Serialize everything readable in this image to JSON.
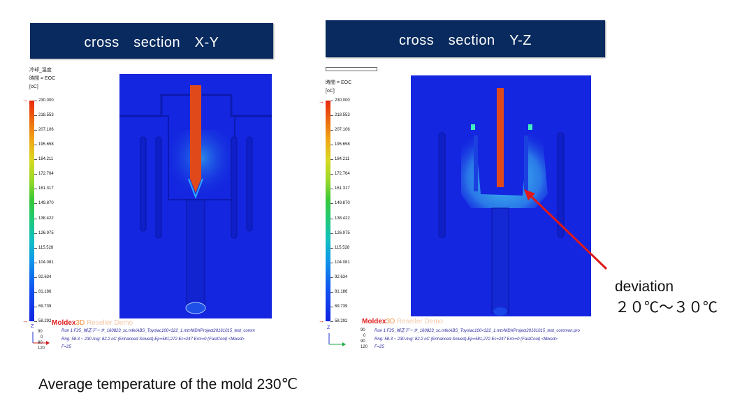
{
  "titles": {
    "left": "cross　section　X-Y",
    "right": "cross　section　Y-Z"
  },
  "legend": {
    "header_line1": "冷却_溫度",
    "header_line2": "時間 = EOC",
    "unit": "[oC]",
    "ticks": [
      "230.000",
      "218.553",
      "207.106",
      "195.658",
      "184.211",
      "172.764",
      "161.317",
      "149.870",
      "138.422",
      "126.975",
      "115.528",
      "104.081",
      "92.634",
      "81.186",
      "69.739",
      "58.292"
    ],
    "axis_label": "Z"
  },
  "footer": {
    "logo_main": "Moldex",
    "logo_3d": "3D",
    "logo_faint": "Reseller Demo",
    "line1": "Run 1:F25_掉正データ_160823_sc.mfe/ABS_Toyolac100<322_1.mtr/MDXProject20161015_test_comm",
    "line1_right": "Run 1:F25_掉正データ_160823_sc.mfe/ABS_Toyolac100<322_1.mtr/MDXProject20161015_test_common.pro",
    "line2": "Rng: 58.3 ~ 230  Avg: 82.2 oC (Enhanced Solved),Ep=581,272 Ec=247 Erm=0 (FastCool) <Mixed>",
    "line3": "F=25",
    "nums": [
      "90",
      "0",
      "90",
      "120"
    ]
  },
  "annotation": {
    "line1": "deviation",
    "line2": "２０℃～３０℃"
  },
  "caption": "Average temperature of the mold 230℃",
  "colors": {
    "title_bg": "#082a5e",
    "mold": "#1426e0",
    "hot_core": "#e04a1a",
    "arrow": "#e01818"
  }
}
